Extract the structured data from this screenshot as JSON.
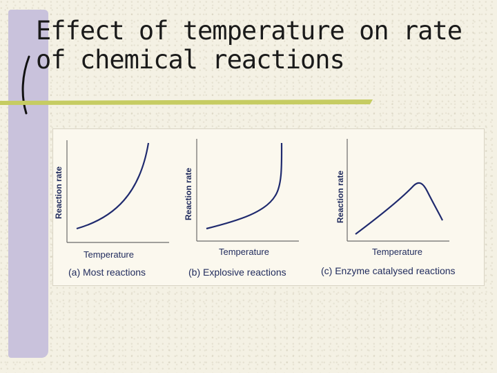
{
  "slide": {
    "title_line1": "Effect of temperature on rate",
    "title_line2": "of chemical reactions"
  },
  "figure": {
    "panels": [
      {
        "ylabel": "Reaction rate",
        "xlabel": "Temperature",
        "caption": "(a) Most reactions",
        "curve_shape": "exponential increase"
      },
      {
        "ylabel": "Reaction rate",
        "xlabel": "Temperature",
        "caption": "(b) Explosive reactions",
        "curve_shape": "gradual then sharp vertical rise"
      },
      {
        "ylabel": "Reaction rate",
        "xlabel": "Temperature",
        "caption": "(c) Enzyme catalysed reactions",
        "curve_shape": "rise to peak then fall"
      }
    ]
  },
  "colors": {
    "curve": "#1f2a6e",
    "side_bar": "#c9c2dc",
    "underline": "#c6cc62",
    "axis": "#6a6a6a"
  }
}
